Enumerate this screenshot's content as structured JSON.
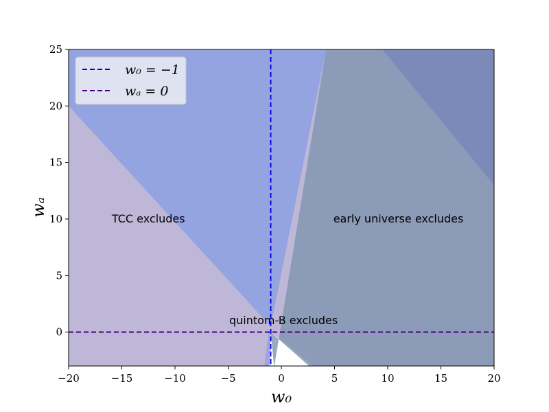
{
  "chart_data": {
    "type": "area",
    "title": "",
    "xlabel": "w₀",
    "ylabel": "wₐ",
    "xlim": [
      -20,
      20
    ],
    "ylim": [
      -3,
      25
    ],
    "xticks": [
      -20,
      -15,
      -10,
      -5,
      0,
      5,
      10,
      15,
      20
    ],
    "yticks": [
      0,
      5,
      10,
      15,
      20,
      25
    ],
    "xtick_labels": [
      "−20",
      "−15",
      "−10",
      "−5",
      "0",
      "5",
      "10",
      "15",
      "20"
    ],
    "ytick_labels": [
      "0",
      "5",
      "10",
      "15",
      "20",
      "25"
    ],
    "grid": false,
    "legend_position": "top-left",
    "regions": [
      {
        "id": "tcc",
        "color": "#7f6fb0",
        "opacity": 0.5,
        "polygon": [
          [
            -20,
            25
          ],
          [
            -20,
            -3
          ],
          [
            -1.14,
            -3
          ],
          [
            -1,
            0
          ],
          [
            3,
            -3
          ],
          [
            20,
            -3
          ],
          [
            20,
            25
          ]
        ]
      },
      {
        "id": "band",
        "color": "#6f96e8",
        "opacity": 0.55,
        "polygon": [
          [
            -20,
            25
          ],
          [
            -20,
            20
          ],
          [
            -1,
            0.5
          ],
          [
            4.2,
            25
          ]
        ]
      },
      {
        "id": "early",
        "color": "#7f94b0",
        "opacity": 0.8,
        "polygon": [
          [
            -0.66,
            -3
          ],
          [
            4.2,
            25
          ],
          [
            20,
            25
          ],
          [
            20,
            -3
          ],
          [
            2.6,
            -3
          ],
          [
            -1,
            0
          ],
          [
            -0.7,
            -3
          ]
        ]
      },
      {
        "id": "upper-right",
        "color": "#6f7fb8",
        "opacity": 0.6,
        "polygon": [
          [
            9.5,
            25
          ],
          [
            20,
            25
          ],
          [
            20,
            13
          ]
        ]
      },
      {
        "id": "narrow-band",
        "color": "#7f8fe8",
        "opacity": 0.45,
        "polygon": [
          [
            -1.6,
            -3
          ],
          [
            -1.2,
            0
          ],
          [
            -1,
            0
          ],
          [
            -1,
            -3
          ]
        ]
      }
    ],
    "lines": [
      {
        "id": "w0-line",
        "orientation": "vertical",
        "value": -1,
        "color": "#0000ee",
        "dash": "dashed"
      },
      {
        "id": "wa-line",
        "orientation": "horizontal",
        "value": 0,
        "color": "#4b0082",
        "dash": "dashed"
      }
    ],
    "annotations": [
      {
        "text": "TCC excludes",
        "x": -12.5,
        "y": 10
      },
      {
        "text": "early universe excludes",
        "x": 11,
        "y": 10
      },
      {
        "text": "quintom-B excludes",
        "x": 0.2,
        "y": 1.0
      }
    ]
  },
  "legend": {
    "items": [
      {
        "label": "w₀ = −1",
        "color": "#0000ee"
      },
      {
        "label": "wₐ = 0",
        "color": "#4b0082"
      }
    ]
  }
}
